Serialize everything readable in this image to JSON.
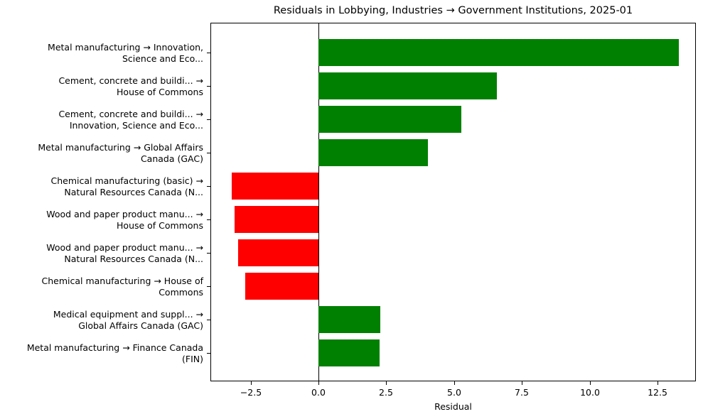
{
  "chart_data": {
    "type": "bar",
    "orientation": "horizontal",
    "title": "Residuals in Lobbying, Industries → Government Institutions, 2025-01",
    "xlabel": "Residual",
    "ylabel": "",
    "xlim": [
      -4.0,
      13.9
    ],
    "grid": false,
    "legend": null,
    "xticks": [
      -2.5,
      0.0,
      2.5,
      5.0,
      7.5,
      10.0,
      12.5
    ],
    "xtick_labels": [
      "−2.5",
      "0.0",
      "2.5",
      "5.0",
      "7.5",
      "10.0",
      "12.5"
    ],
    "categories": [
      "Metal manufacturing → Innovation,\nScience and Eco...",
      "Cement, concrete and buildi... →\nHouse of Commons",
      "Cement, concrete and buildi... →\nInnovation, Science and Eco...",
      "Metal manufacturing → Global Affairs\nCanada (GAC)",
      "Chemical manufacturing (basic) →\nNatural Resources Canada (N...",
      "Wood and paper product manu... →\nHouse of Commons",
      "Wood and paper product manu... →\nNatural Resources Canada (N...",
      "Chemical manufacturing → House of\nCommons",
      "Medical equipment and suppl... →\nGlobal Affairs Canada (GAC)",
      "Metal manufacturing → Finance Canada\n(FIN)"
    ],
    "values": [
      13.28,
      6.57,
      5.28,
      4.03,
      -3.21,
      -3.08,
      -2.97,
      -2.7,
      2.28,
      2.25
    ],
    "colors": {
      "positive": "#008000",
      "negative": "#ff0000",
      "zero_line": "#000000"
    }
  },
  "labels": [
    {
      "line1": "Metal manufacturing → Innovation,",
      "line2": "Science and Eco..."
    },
    {
      "line1": "Cement, concrete and buildi... →",
      "line2": "House of Commons"
    },
    {
      "line1": "Cement, concrete and buildi... →",
      "line2": "Innovation, Science and Eco..."
    },
    {
      "line1": "Metal manufacturing → Global Affairs",
      "line2": "Canada (GAC)"
    },
    {
      "line1": "Chemical manufacturing (basic) →",
      "line2": "Natural Resources Canada (N..."
    },
    {
      "line1": "Wood and paper product manu... →",
      "line2": "House of Commons"
    },
    {
      "line1": "Wood and paper product manu... →",
      "line2": "Natural Resources Canada (N..."
    },
    {
      "line1": "Chemical manufacturing → House of",
      "line2": "Commons"
    },
    {
      "line1": "Medical equipment and suppl... →",
      "line2": "Global Affairs Canada (GAC)"
    },
    {
      "line1": "Metal manufacturing → Finance Canada",
      "line2": "(FIN)"
    }
  ]
}
